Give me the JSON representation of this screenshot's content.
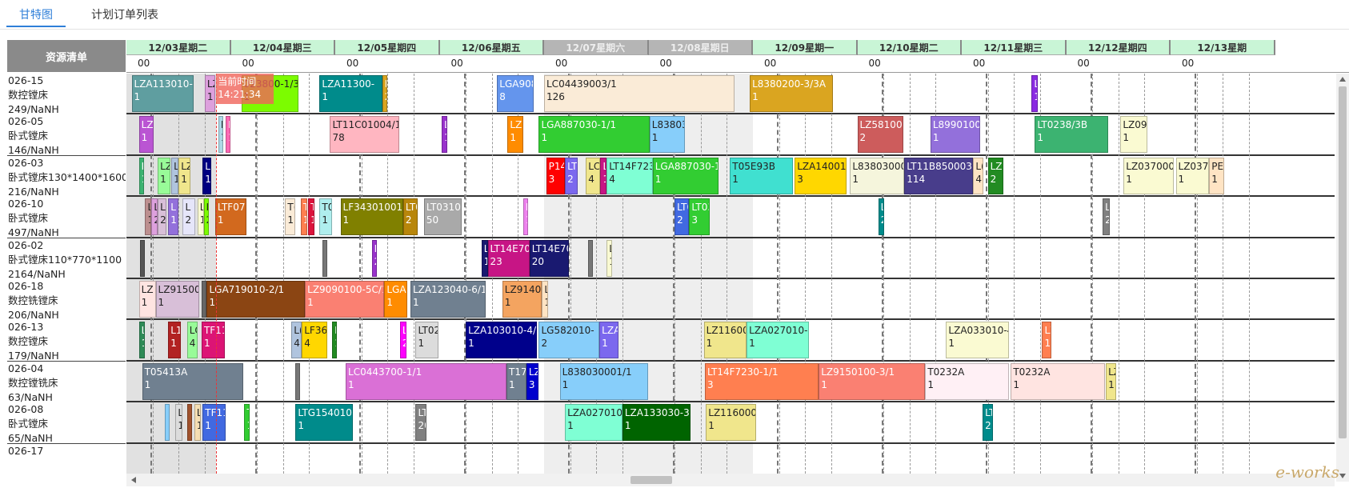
{
  "tabs": [
    {
      "label": "甘特图",
      "active": true
    },
    {
      "label": "计划订单列表",
      "active": false
    }
  ],
  "resource_header": "资源清单",
  "resources": [
    {
      "code": "026-15",
      "name": "数控镗床",
      "qty": "249/NaNH"
    },
    {
      "code": "026-05",
      "name": "卧式镗床",
      "qty": "146/NaNH"
    },
    {
      "code": "026-03",
      "name": "卧式镗床130*1400*1600",
      "qty": "216/NaNH"
    },
    {
      "code": "026-10",
      "name": "卧式镗床",
      "qty": "497/NaNH"
    },
    {
      "code": "026-02",
      "name": "卧式镗床110*770*1100",
      "qty": "2164/NaNH"
    },
    {
      "code": "026-18",
      "name": "数控铣镗床",
      "qty": "206/NaNH"
    },
    {
      "code": "026-13",
      "name": "数控镗床",
      "qty": "179/NaNH"
    },
    {
      "code": "026-04",
      "name": "数控镗铣床",
      "qty": "63/NaNH"
    },
    {
      "code": "026-08",
      "name": "卧式镗床",
      "qty": "65/NaNH"
    },
    {
      "code": "026-17",
      "name": "",
      "qty": ""
    }
  ],
  "days": [
    {
      "label": "12/03星期二",
      "weekend": false
    },
    {
      "label": "12/04星期三",
      "weekend": false
    },
    {
      "label": "12/05星期四",
      "weekend": false
    },
    {
      "label": "12/06星期五",
      "weekend": false
    },
    {
      "label": "12/07星期六",
      "weekend": true
    },
    {
      "label": "12/08星期日",
      "weekend": true
    },
    {
      "label": "12/09星期一",
      "weekend": false
    },
    {
      "label": "12/10星期二",
      "weekend": false
    },
    {
      "label": "12/11星期三",
      "weekend": false
    },
    {
      "label": "12/12星期四",
      "weekend": false
    },
    {
      "label": "12/13星期"
    }
  ],
  "hour_label": "00",
  "now": {
    "label": "当前时间",
    "time": "14:21:34"
  },
  "tasks": [
    [
      {
        "t": "LZA113010-",
        "s": "1",
        "d": 0.05,
        "w": 0.59,
        "c": "#5f9ea0"
      },
      {
        "t": "LZ",
        "s": "1",
        "d": 0.75,
        "w": 0.1,
        "c": "#dda0dd",
        "k": 1
      },
      {
        "t": "023800-1/3A",
        "s": "1",
        "d": 1.1,
        "w": 0.55,
        "c": "#7cfc00",
        "k": 1
      },
      {
        "t": "LZA11300-",
        "s": "1",
        "d": 1.85,
        "w": 0.6,
        "c": "#008b8b"
      },
      {
        "t": "L",
        "s": "2",
        "d": 2.45,
        "w": 0.05,
        "c": "#daa520"
      },
      {
        "t": "LGA908(",
        "s": "8",
        "d": 3.55,
        "w": 0.35,
        "c": "#6495ed"
      },
      {
        "t": "LC04439003/1",
        "s": "126",
        "d": 4.0,
        "w": 1.82,
        "c": "#faebd7",
        "k": 1
      },
      {
        "t": "L8380200-3/3A",
        "s": "1",
        "d": 5.97,
        "w": 0.8,
        "c": "#daa520"
      },
      {
        "t": "L",
        "s": "1",
        "d": 8.67,
        "w": 0.06,
        "c": "#8a2be2"
      }
    ],
    [
      {
        "t": "LZA",
        "s": "1",
        "d": 0.12,
        "w": 0.14,
        "c": "#ba55d3"
      },
      {
        "t": "L",
        "s": "1",
        "d": 0.88,
        "w": 0.05,
        "c": "#add8e6",
        "k": 1
      },
      {
        "t": "L",
        "s": "1",
        "d": 0.95,
        "w": 0.04,
        "c": "#ff69b4"
      },
      {
        "t": "LT11C01004/1",
        "s": "78",
        "d": 1.95,
        "w": 0.66,
        "c": "#ffb6c1",
        "k": 1
      },
      {
        "t": "L",
        "s": "1",
        "d": 3.02,
        "w": 0.05,
        "c": "#9932cc"
      },
      {
        "t": "LZ9",
        "s": "1",
        "d": 3.65,
        "w": 0.15,
        "c": "#ff8c00"
      },
      {
        "t": "LGA887030-1/1",
        "s": "1",
        "d": 3.95,
        "w": 1.06,
        "c": "#32cd32"
      },
      {
        "t": "L838030",
        "s": "1",
        "d": 5.01,
        "w": 0.34,
        "c": "#87cefa",
        "k": 1
      },
      {
        "t": "LZ5810000",
        "s": "2",
        "d": 7.0,
        "w": 0.44,
        "c": "#cd5c5c"
      },
      {
        "t": "L899010001",
        "s": "1",
        "d": 7.7,
        "w": 0.48,
        "c": "#9370db"
      },
      {
        "t": "LT0238/3B",
        "s": "1",
        "d": 8.7,
        "w": 0.7,
        "c": "#3cb371"
      },
      {
        "t": "LZ092",
        "s": "1",
        "d": 9.52,
        "w": 0.26,
        "c": "#fafad2",
        "k": 1
      }
    ],
    [
      {
        "t": "L",
        "s": "1",
        "d": 0.12,
        "w": 0.04,
        "c": "#3cb371"
      },
      {
        "t": "LZ",
        "s": "1",
        "d": 0.3,
        "w": 0.12,
        "c": "#98fb98",
        "k": 1
      },
      {
        "t": "L",
        "s": "1",
        "d": 0.43,
        "w": 0.07,
        "c": "#b0c4de",
        "k": 1
      },
      {
        "t": "LZ",
        "s": "1",
        "d": 0.5,
        "w": 0.11,
        "c": "#f0e68c",
        "k": 1
      },
      {
        "t": "L(",
        "s": "1",
        "d": 0.73,
        "w": 0.08,
        "c": "#000080"
      },
      {
        "t": "P14(",
        "s": "3",
        "d": 4.02,
        "w": 0.18,
        "c": "#ff0000"
      },
      {
        "t": "LT",
        "s": "2",
        "d": 4.2,
        "w": 0.12,
        "c": "#7b68ee"
      },
      {
        "t": "LC(",
        "s": "4",
        "d": 4.4,
        "w": 0.14,
        "c": "#f0e68c",
        "k": 1
      },
      {
        "t": "L",
        "s": "1",
        "d": 4.54,
        "w": 0.06,
        "c": "#c71585"
      },
      {
        "t": "LT14F7230",
        "s": "4",
        "d": 4.6,
        "w": 0.44,
        "c": "#7fffd4",
        "k": 1
      },
      {
        "t": "LGA887030-1/1",
        "s": "1",
        "d": 5.04,
        "w": 0.63,
        "c": "#32cd32"
      },
      {
        "t": "T05E93B",
        "s": "1",
        "d": 5.78,
        "w": 0.6,
        "c": "#40e0d0",
        "k": 1
      },
      {
        "t": "LZA14001-",
        "s": "3",
        "d": 6.4,
        "w": 0.5,
        "c": "#ffd700",
        "k": 1
      },
      {
        "t": "L838030001/",
        "s": "1",
        "d": 6.93,
        "w": 0.52,
        "c": "#f5f5dc",
        "k": 1
      },
      {
        "t": "LT11B850003/1",
        "s": "114",
        "d": 7.45,
        "w": 0.66,
        "c": "#483d8b"
      },
      {
        "t": "L(",
        "s": "4",
        "d": 8.11,
        "w": 0.1,
        "c": "#ffe4c4",
        "k": 1
      },
      {
        "t": "LZ3",
        "s": "2",
        "d": 8.25,
        "w": 0.15,
        "c": "#228b22"
      },
      {
        "t": "LZ037000-",
        "s": "1",
        "d": 9.55,
        "w": 0.48,
        "c": "#fafad2",
        "k": 1
      },
      {
        "t": "LZ0370",
        "s": "1",
        "d": 10.05,
        "w": 0.32,
        "c": "#fafad2",
        "k": 1
      },
      {
        "t": "PEL",
        "s": "1",
        "d": 10.37,
        "w": 0.14,
        "c": "#ffe4c4",
        "k": 1
      }
    ],
    [
      {
        "t": "L",
        "s": "1",
        "d": 0.18,
        "w": 0.06,
        "c": "#bc8f8f",
        "k": 1
      },
      {
        "t": "L",
        "s": "2",
        "d": 0.24,
        "w": 0.06,
        "c": "#dda0dd",
        "k": 1
      },
      {
        "t": "L",
        "s": "2",
        "d": 0.3,
        "w": 0.08,
        "c": "#d8bfd8",
        "k": 1
      },
      {
        "t": "L",
        "s": "1",
        "d": 0.4,
        "w": 0.1,
        "c": "#9370db"
      },
      {
        "t": "L",
        "s": "2",
        "d": 0.54,
        "w": 0.12,
        "c": "#e6e6fa",
        "k": 1
      },
      {
        "t": "L",
        "s": "1",
        "d": 0.68,
        "w": 0.06,
        "c": "#fafad2",
        "k": 1
      },
      {
        "t": "L",
        "s": "2",
        "d": 0.74,
        "w": 0.05,
        "c": "#7cfc00",
        "k": 1
      },
      {
        "t": "LTF07(",
        "s": "1",
        "d": 0.85,
        "w": 0.3,
        "c": "#d2691e"
      },
      {
        "t": "T(",
        "s": "1",
        "d": 1.52,
        "w": 0.1,
        "c": "#faebd7",
        "k": 1
      },
      {
        "t": "T",
        "s": "1",
        "d": 1.67,
        "w": 0.06,
        "c": "#ff7f50"
      },
      {
        "t": "T",
        "s": "1",
        "d": 1.74,
        "w": 0.06,
        "c": "#dc143c"
      },
      {
        "t": "T0",
        "s": "1",
        "d": 1.85,
        "w": 0.12,
        "c": "#afeeee",
        "k": 1
      },
      {
        "t": "LF343010012/1",
        "s": "1",
        "d": 2.05,
        "w": 0.6,
        "c": "#808000"
      },
      {
        "t": "LT0",
        "s": "2",
        "d": 2.65,
        "w": 0.14,
        "c": "#b8860b"
      },
      {
        "t": "LT03101",
        "s": "50",
        "d": 2.85,
        "w": 0.36,
        "c": "#a9a9a9"
      },
      {
        "t": "L",
        "s": "1",
        "d": 3.8,
        "w": 0.03,
        "c": "#ee82ee"
      },
      {
        "t": "LT0",
        "s": "2",
        "d": 5.25,
        "w": 0.14,
        "c": "#4169e1"
      },
      {
        "t": "LT03(",
        "s": "3",
        "d": 5.39,
        "w": 0.2,
        "c": "#32cd32"
      },
      {
        "t": "L",
        "s": "2",
        "d": 7.2,
        "w": 0.06,
        "c": "#008b8b"
      },
      {
        "t": "L",
        "s": "2",
        "d": 9.35,
        "w": 0.07,
        "c": "#808080"
      }
    ],
    [
      {
        "t": "",
        "s": "",
        "d": 0.13,
        "w": 0.04,
        "c": "#555"
      },
      {
        "t": "",
        "s": "",
        "d": 1.88,
        "w": 0.02,
        "c": "#777"
      },
      {
        "t": "L",
        "s": "2",
        "d": 2.35,
        "w": 0.04,
        "c": "#9932cc"
      },
      {
        "t": "L",
        "s": "1",
        "d": 3.4,
        "w": 0.06,
        "c": "#191970"
      },
      {
        "t": "LT14E705",
        "s": "23",
        "d": 3.46,
        "w": 0.4,
        "c": "#c71585"
      },
      {
        "t": "LT14E705",
        "s": "20",
        "d": 3.86,
        "w": 0.38,
        "c": "#191970"
      },
      {
        "t": "",
        "s": "",
        "d": 4.42,
        "w": 0.03,
        "c": "#777"
      },
      {
        "t": "L",
        "s": "1",
        "d": 4.6,
        "w": 0.05,
        "c": "#fafad2",
        "k": 1
      }
    ],
    [
      {
        "t": "LZ",
        "s": "1",
        "d": 0.12,
        "w": 0.16,
        "c": "#ffe4e1",
        "k": 1
      },
      {
        "t": "LZ91500(",
        "s": "1",
        "d": 0.28,
        "w": 0.42,
        "c": "#d8bfd8",
        "k": 1
      },
      {
        "t": "",
        "s": "",
        "d": 0.72,
        "w": 0.04,
        "c": "#666"
      },
      {
        "t": "LGA719010-2/1",
        "s": "1",
        "d": 0.77,
        "w": 0.94,
        "c": "#8b4513"
      },
      {
        "t": "LZ9090100-5C/1",
        "s": "1",
        "d": 1.71,
        "w": 0.76,
        "c": "#fa8072"
      },
      {
        "t": "LGA8",
        "s": "1",
        "d": 2.47,
        "w": 0.22,
        "c": "#ff8c00"
      },
      {
        "t": "LZA123040-6/1",
        "s": "1",
        "d": 2.72,
        "w": 0.72,
        "c": "#708090"
      },
      {
        "t": "LZ91400(",
        "s": "1",
        "d": 3.6,
        "w": 0.38,
        "c": "#f4a460",
        "k": 1
      },
      {
        "t": "L",
        "s": "1",
        "d": 3.98,
        "w": 0.06,
        "c": "#ffe4c4",
        "k": 1
      }
    ],
    [
      {
        "t": "L",
        "s": "1",
        "d": 0.12,
        "w": 0.06,
        "c": "#2e8b57"
      },
      {
        "t": "L1",
        "s": "1",
        "d": 0.4,
        "w": 0.12,
        "c": "#b22222"
      },
      {
        "t": "LC",
        "s": "4",
        "d": 0.58,
        "w": 0.1,
        "c": "#98fb98",
        "k": 1
      },
      {
        "t": "TF11",
        "s": "1",
        "d": 0.72,
        "w": 0.22,
        "c": "#dc1475"
      },
      {
        "t": "L(",
        "s": "4",
        "d": 1.58,
        "w": 0.1,
        "c": "#b0c4de",
        "k": 1
      },
      {
        "t": "LF368",
        "s": "4",
        "d": 1.68,
        "w": 0.24,
        "c": "#ffd700",
        "k": 1
      },
      {
        "t": "L",
        "s": "1",
        "d": 1.97,
        "w": 0.04,
        "c": "#228b22"
      },
      {
        "t": "L",
        "s": "2",
        "d": 2.62,
        "w": 0.06,
        "c": "#ff00ff"
      },
      {
        "t": "LT02",
        "s": "1",
        "d": 2.77,
        "w": 0.22,
        "c": "#dcdcdc",
        "k": 1
      },
      {
        "t": "LZA103010-4/1",
        "s": "1",
        "d": 3.25,
        "w": 0.68,
        "c": "#00008b"
      },
      {
        "t": "LG582010-",
        "s": "2",
        "d": 3.95,
        "w": 0.58,
        "c": "#87cefa",
        "k": 1
      },
      {
        "t": "LZA",
        "s": "1",
        "d": 4.53,
        "w": 0.18,
        "c": "#7b68ee"
      },
      {
        "t": "LZ116000",
        "s": "1",
        "d": 5.53,
        "w": 0.41,
        "c": "#f0e68c",
        "k": 1
      },
      {
        "t": "LZA027010-",
        "s": "1",
        "d": 5.94,
        "w": 0.6,
        "c": "#7fffd4",
        "k": 1
      },
      {
        "t": "LZA033010-4/1",
        "s": "1",
        "d": 7.85,
        "w": 0.6,
        "c": "#fafad2",
        "k": 1
      },
      {
        "t": "LZ",
        "s": "1",
        "d": 8.77,
        "w": 0.09,
        "c": "#ff7f50"
      }
    ],
    [
      {
        "t": "T05413A",
        "s": "1",
        "d": 0.15,
        "w": 0.97,
        "c": "#708090"
      },
      {
        "t": "",
        "s": "",
        "d": 1.62,
        "w": 0.02,
        "c": "#777"
      },
      {
        "t": "LC0443700-1/1",
        "s": "1",
        "d": 2.1,
        "w": 1.54,
        "c": "#da70d6"
      },
      {
        "t": "T170",
        "s": "1",
        "d": 3.64,
        "w": 0.19,
        "c": "#708090"
      },
      {
        "t": "LZ",
        "s": "3",
        "d": 3.83,
        "w": 0.12,
        "c": "#0000cd"
      },
      {
        "t": "L838030001/1",
        "s": "1",
        "d": 4.15,
        "w": 0.85,
        "c": "#87cefa",
        "k": 1
      },
      {
        "t": "LT14F7230-1/1",
        "s": "3",
        "d": 5.54,
        "w": 1.09,
        "c": "#ff7f50"
      },
      {
        "t": "LZ9150100-3/1",
        "s": "1",
        "d": 6.63,
        "w": 1.02,
        "c": "#fa8072"
      },
      {
        "t": "T0232A",
        "s": "1",
        "d": 7.65,
        "w": 0.8,
        "c": "#fff0f5",
        "k": 1
      },
      {
        "t": "T0232A",
        "s": "1",
        "d": 8.47,
        "w": 0.9,
        "c": "#ffe4e1",
        "k": 1
      },
      {
        "t": "LZ",
        "s": "1",
        "d": 9.38,
        "w": 0.1,
        "c": "#f0e68c",
        "k": 1
      }
    ],
    [
      {
        "t": "",
        "s": "",
        "d": 0.37,
        "w": 0.03,
        "c": "#87cefa"
      },
      {
        "t": "L",
        "s": "1",
        "d": 0.47,
        "w": 0.07,
        "c": "#dcdcdc",
        "k": 1
      },
      {
        "t": "",
        "s": "",
        "d": 0.58,
        "w": 0.05,
        "c": "#a0522d"
      },
      {
        "t": "L",
        "s": "1",
        "d": 0.65,
        "w": 0.06,
        "c": "#f5deb3",
        "k": 1
      },
      {
        "t": "TF11",
        "s": "1",
        "d": 0.73,
        "w": 0.22,
        "c": "#4169e1"
      },
      {
        "t": "T",
        "s": "1",
        "d": 1.13,
        "w": 0.05,
        "c": "#32cd32"
      },
      {
        "t": "LTG1540101/1",
        "s": "1",
        "d": 1.62,
        "w": 0.55,
        "c": "#008b8b"
      },
      {
        "t": "LT",
        "s": "20",
        "d": 2.77,
        "w": 0.1,
        "c": "#808080"
      },
      {
        "t": "LZA027010-",
        "s": "1",
        "d": 4.2,
        "w": 0.55,
        "c": "#7fffd4",
        "k": 1
      },
      {
        "t": "LZA133030-3/1",
        "s": "1",
        "d": 4.75,
        "w": 0.65,
        "c": "#006400"
      },
      {
        "t": "LZ1160000-",
        "s": "1",
        "d": 5.55,
        "w": 0.48,
        "c": "#f0e68c",
        "k": 1
      },
      {
        "t": "LT",
        "s": "2",
        "d": 8.2,
        "w": 0.1,
        "c": "#008b8b"
      }
    ]
  ],
  "watermark": "e-works"
}
